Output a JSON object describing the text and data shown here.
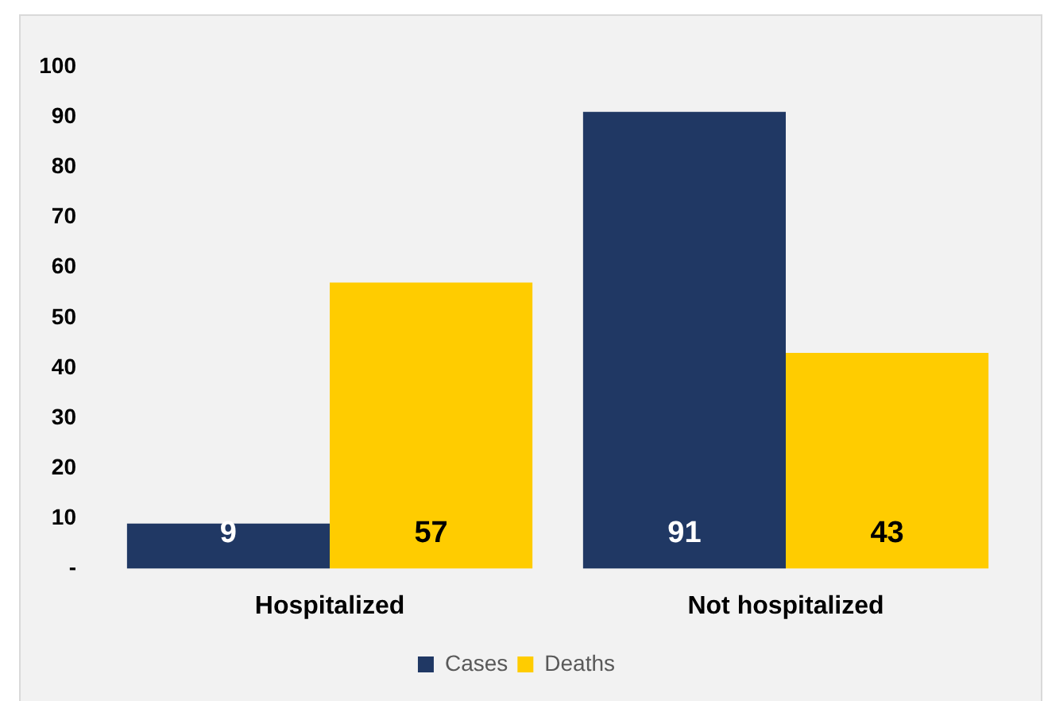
{
  "chart_data": {
    "type": "bar",
    "categories": [
      "Hospitalized",
      "Not hospitalized"
    ],
    "series": [
      {
        "name": "Cases",
        "color": "#203864",
        "values": [
          9,
          91
        ]
      },
      {
        "name": "Deaths",
        "color": "#ffcc00",
        "values": [
          57,
          43
        ]
      }
    ],
    "ylim": [
      0,
      100
    ],
    "yticks": [
      {
        "value": 0,
        "label": "-"
      },
      10,
      20,
      30,
      40,
      50,
      60,
      70,
      80,
      90,
      100
    ],
    "grid": false,
    "legend": "bottom",
    "data_labels": true
  }
}
